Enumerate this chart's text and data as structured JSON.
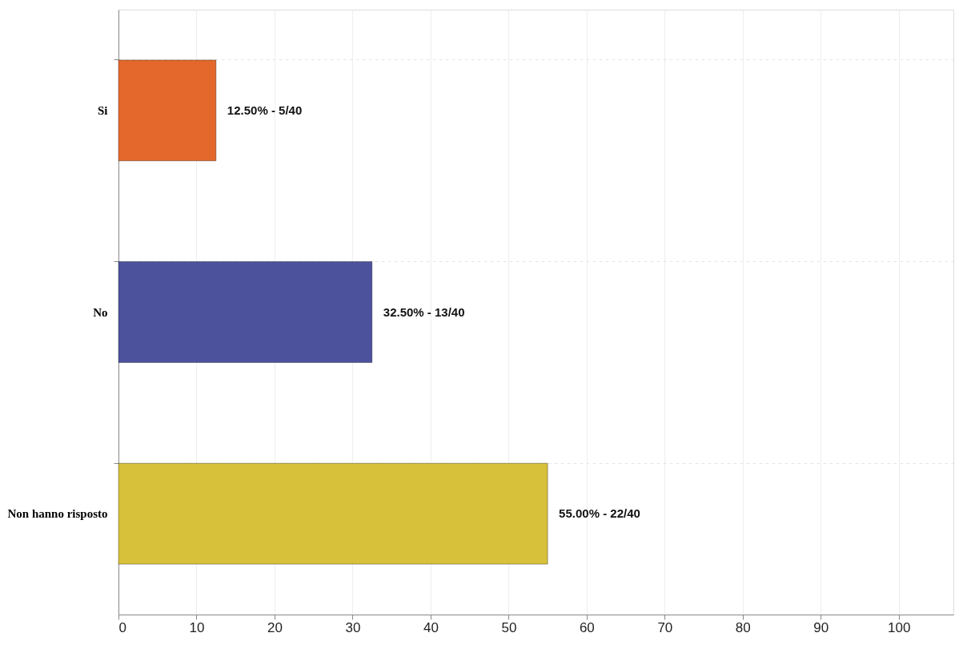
{
  "chart_data": {
    "type": "bar",
    "orientation": "horizontal",
    "categories": [
      "Si",
      "No",
      "Non hanno risposto"
    ],
    "values": [
      12.5,
      32.5,
      55
    ],
    "colors": [
      "#e4682c",
      "#4d529c",
      "#d7c13a"
    ],
    "value_labels": [
      "12.50% - 5/40",
      "32.50% - 13/40",
      "55.00% - 22/40"
    ],
    "xlim": [
      0,
      107
    ],
    "xticks": [
      0,
      10,
      20,
      30,
      40,
      50,
      60,
      70,
      80,
      90,
      100
    ],
    "grid": true,
    "legend": false
  }
}
